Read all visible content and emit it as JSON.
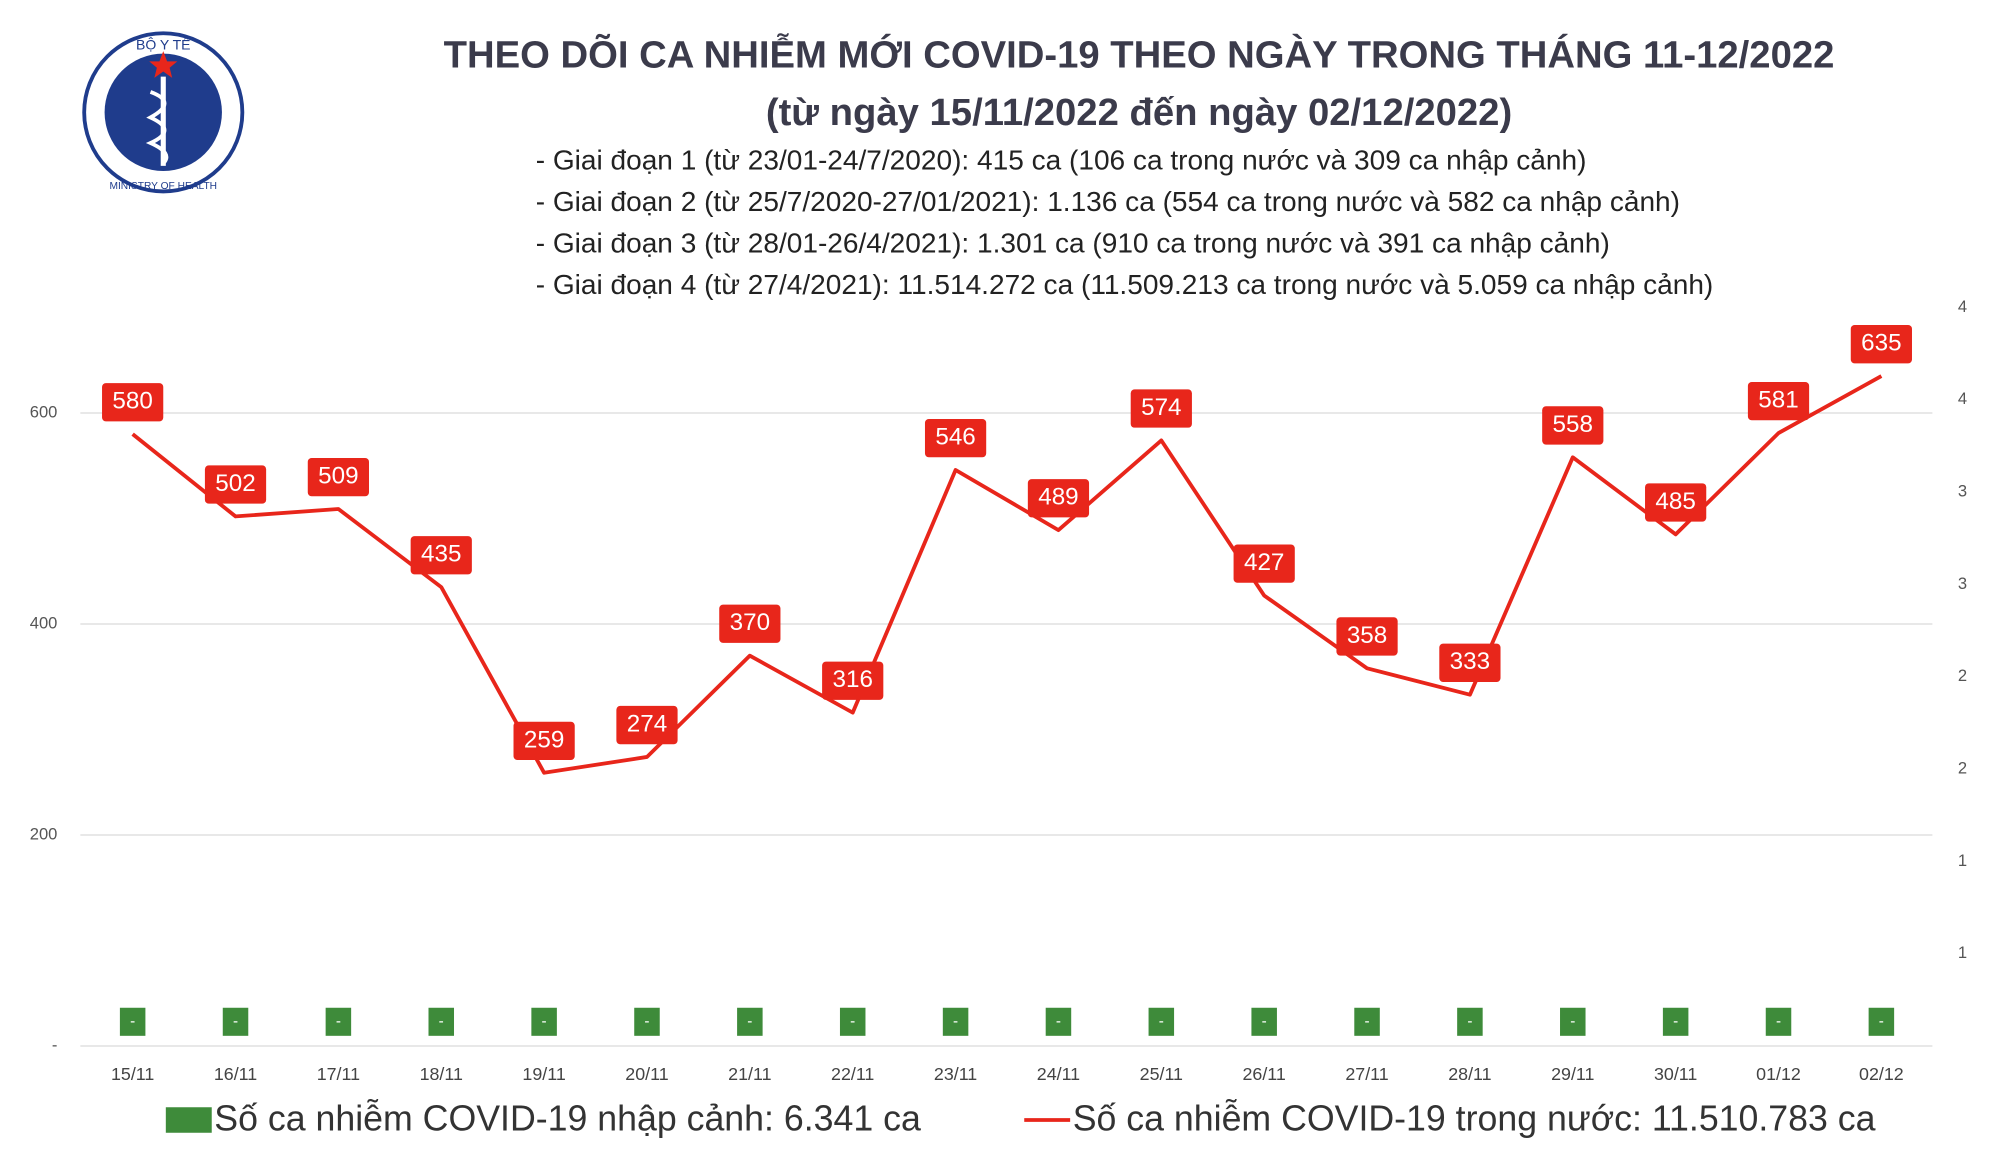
{
  "chart_data": {
    "type": "line",
    "title": "THEO DÕI CA NHIỄM MỚI COVID-19 THEO NGÀY TRONG THÁNG 11-12/2022",
    "subtitle": "(từ ngày 15/11/2022 đến ngày 02/12/2022)",
    "annotations": [
      "- Giai đoạn 1 (từ 23/01-24/7/2020): 415 ca (106 ca trong nước và 309 ca nhập cảnh)",
      "- Giai đoạn 2 (từ 25/7/2020-27/01/2021): 1.136 ca (554 ca trong nước và 582 ca nhập cảnh)",
      "- Giai đoạn 3 (từ 28/01-26/4/2021): 1.301 ca (910 ca trong nước và 391 ca nhập cảnh)",
      "- Giai đoạn 4 (từ 27/4/2021): 11.514.272 ca (11.509.213 ca trong nước và 5.059 ca nhập cảnh)"
    ],
    "logo": {
      "top": "BỘ Y TẾ",
      "bottom": "MINISTRY OF HEALTH"
    },
    "categories": [
      "15/11",
      "16/11",
      "17/11",
      "18/11",
      "19/11",
      "20/11",
      "21/11",
      "22/11",
      "23/11",
      "24/11",
      "25/11",
      "26/11",
      "27/11",
      "28/11",
      "29/11",
      "30/11",
      "01/12",
      "02/12"
    ],
    "series": [
      {
        "name": "Số ca nhiễm COVID-19 nhập cảnh: 6.341 ca",
        "type": "bar",
        "axis": "y2",
        "color": "#3e8b3a",
        "values": [
          0,
          0,
          0,
          0,
          0,
          0,
          0,
          0,
          0,
          0,
          0,
          0,
          0,
          0,
          0,
          0,
          0,
          0
        ],
        "value_labels": [
          "-",
          "-",
          "-",
          "-",
          "-",
          "-",
          "-",
          "-",
          "-",
          "-",
          "-",
          "-",
          "-",
          "-",
          "-",
          "-",
          "-",
          "-"
        ]
      },
      {
        "name": "Số ca nhiễm COVID-19 trong nước: 11.510.783 ca",
        "type": "line",
        "color": "#e8261b",
        "values": [
          580,
          502,
          509,
          435,
          259,
          274,
          370,
          316,
          546,
          489,
          574,
          427,
          358,
          333,
          558,
          485,
          581,
          635
        ]
      }
    ],
    "ylim": [
      0,
      700
    ],
    "yticks": [
      {
        "value": 0,
        "label": "-"
      },
      200,
      400,
      600
    ],
    "y2lim": [
      0,
      4
    ],
    "y2ticks": [
      {
        "value": 0.5,
        "label": "1"
      },
      {
        "value": 1,
        "label": "1"
      },
      {
        "value": 1.5,
        "label": "2"
      },
      {
        "value": 2,
        "label": "2"
      },
      {
        "value": 2.5,
        "label": "3"
      },
      {
        "value": 3,
        "label": "3"
      },
      {
        "value": 3.5,
        "label": "4"
      },
      {
        "value": 4,
        "label": "4"
      }
    ],
    "grid": true,
    "legend": "bottom"
  }
}
